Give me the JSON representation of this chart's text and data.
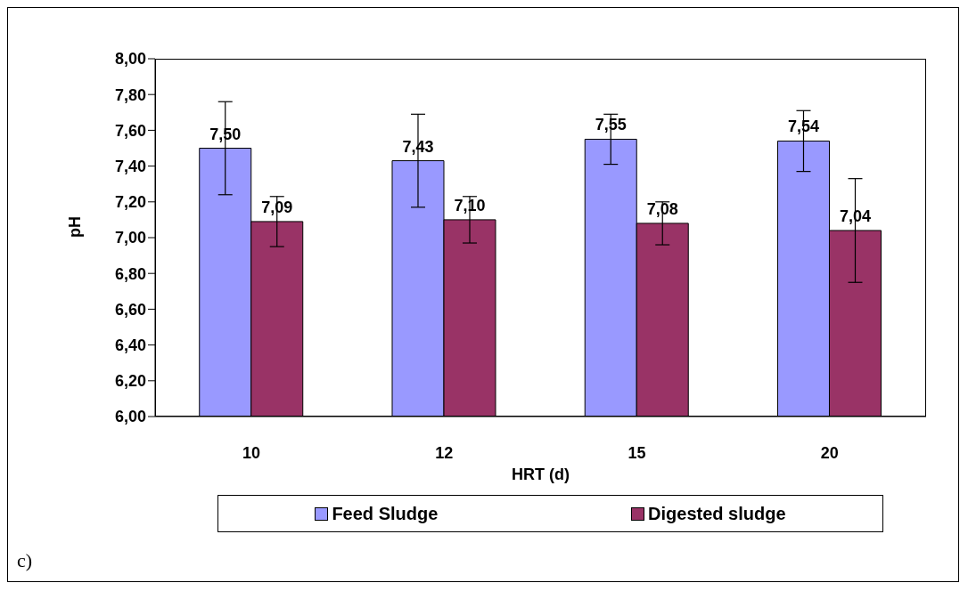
{
  "chart_data": {
    "type": "bar",
    "xlabel": "HRT (d)",
    "ylabel": "pH",
    "categories": [
      "10",
      "12",
      "15",
      "20"
    ],
    "series": [
      {
        "name": "Feed Sludge",
        "color": "#9999ff",
        "values": [
          7.5,
          7.43,
          7.55,
          7.54
        ],
        "errors": [
          0.26,
          0.26,
          0.14,
          0.17
        ],
        "value_labels": [
          "7,50",
          "7,43",
          "7,55",
          "7,54"
        ]
      },
      {
        "name": "Digested sludge",
        "color": "#993366",
        "values": [
          7.09,
          7.1,
          7.08,
          7.04
        ],
        "errors": [
          0.14,
          0.13,
          0.12,
          0.29
        ],
        "value_labels": [
          "7,09",
          "7,10",
          "7,08",
          "7,04"
        ]
      }
    ],
    "ylim": [
      6,
      8
    ],
    "yticks": [
      {
        "value": 6,
        "label": "6,00"
      },
      {
        "value": 6.2,
        "label": "6,20"
      },
      {
        "value": 6.4,
        "label": "6,40"
      },
      {
        "value": 6.6,
        "label": "6,60"
      },
      {
        "value": 6.8,
        "label": "6,80"
      },
      {
        "value": 7,
        "label": "7,00"
      },
      {
        "value": 7.2,
        "label": "7,20"
      },
      {
        "value": 7.4,
        "label": "7,40"
      },
      {
        "value": 7.6,
        "label": "7,60"
      },
      {
        "value": 7.8,
        "label": "7,80"
      },
      {
        "value": 8,
        "label": "8,00"
      }
    ],
    "grid": false,
    "legend": "bottom",
    "annotations": [
      "c)"
    ]
  }
}
